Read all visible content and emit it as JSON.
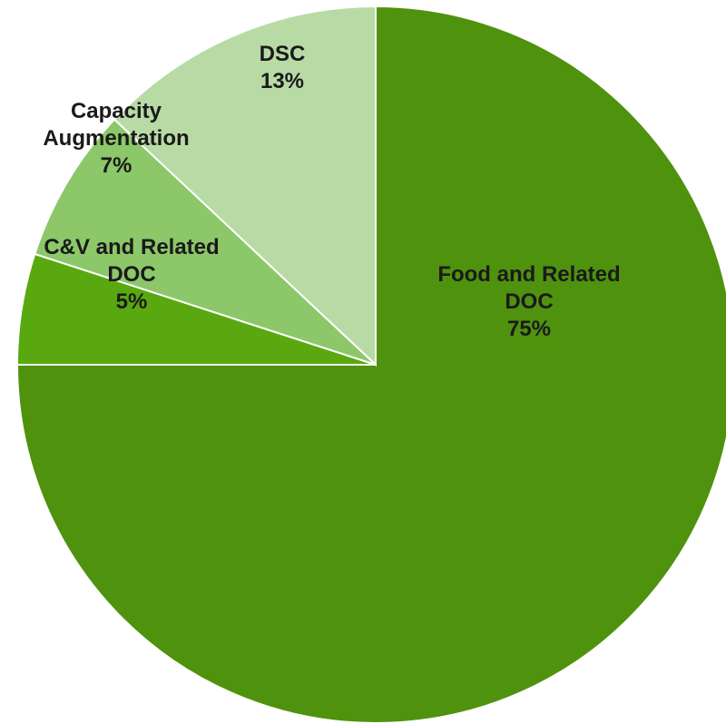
{
  "chart_data": {
    "type": "pie",
    "title": "",
    "start_angle_deg": 0,
    "direction": "clockwise",
    "slices": [
      {
        "label_lines": [
          "Food and Related",
          "DOC",
          "75%"
        ],
        "value": 75,
        "color": "#4f920d"
      },
      {
        "label_lines": [
          "C&V and Related",
          "DOC",
          "5%"
        ],
        "value": 5,
        "color": "#5aa80f"
      },
      {
        "label_lines": [
          "Capacity",
          "Augmentation",
          "7%"
        ],
        "value": 7,
        "color": "#8cc76a"
      },
      {
        "label_lines": [
          "DSC",
          "13%"
        ],
        "value": 13,
        "color": "#b8dba6"
      }
    ]
  }
}
